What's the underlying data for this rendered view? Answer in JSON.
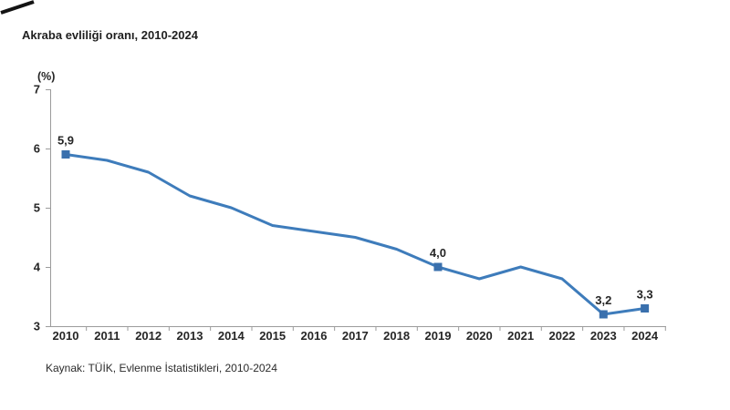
{
  "title": "Akraba evliliği oranı, 2010-2024",
  "source": "Kaynak: TÜİK, Evlenme İstatistikleri, 2010-2024",
  "chart_data": {
    "type": "line",
    "title": "Akraba evliliği oranı, 2010-2024",
    "xlabel": "",
    "ylabel": "(%)",
    "categories": [
      "2010",
      "2011",
      "2012",
      "2013",
      "2014",
      "2015",
      "2016",
      "2017",
      "2018",
      "2019",
      "2020",
      "2021",
      "2022",
      "2023",
      "2024"
    ],
    "values": [
      5.9,
      5.8,
      5.6,
      5.2,
      5.0,
      4.7,
      4.6,
      4.5,
      4.3,
      4.0,
      3.8,
      4.0,
      3.8,
      3.2,
      3.3
    ],
    "labeled_points": [
      {
        "index": 0,
        "label": "5,9"
      },
      {
        "index": 9,
        "label": "4,0"
      },
      {
        "index": 13,
        "label": "3,2"
      },
      {
        "index": 14,
        "label": "3,3"
      }
    ],
    "ylim": [
      3,
      7
    ],
    "yticks": [
      3,
      4,
      5,
      6,
      7
    ],
    "grid": false,
    "legend": "none",
    "line_color": "#3E7CBB",
    "marker_color": "#3A70AD",
    "axis_color": "#9B9B9B",
    "text_color": "#262626"
  }
}
